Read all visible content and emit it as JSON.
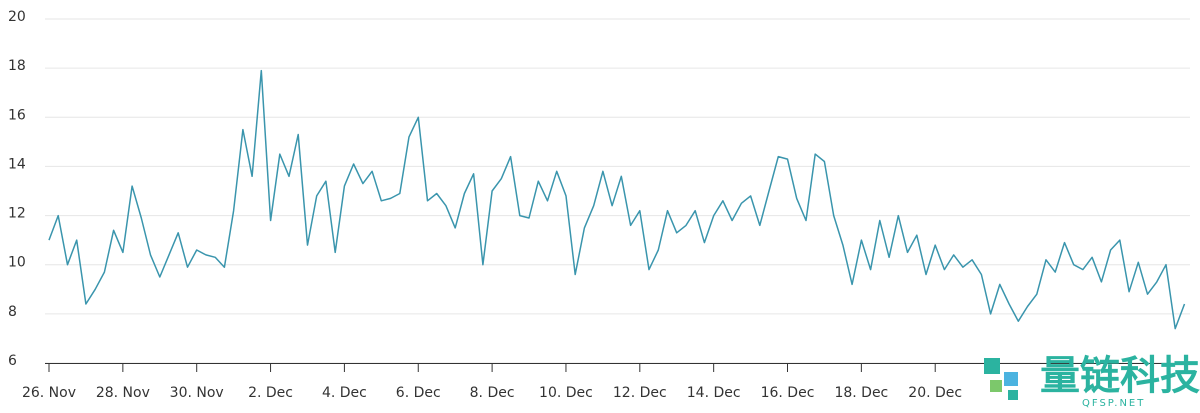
{
  "chart_data": {
    "type": "line",
    "x": [
      0,
      0.25,
      0.5,
      0.75,
      1,
      1.25,
      1.5,
      1.75,
      2,
      2.25,
      2.5,
      2.75,
      3,
      3.25,
      3.5,
      3.75,
      4,
      4.25,
      4.5,
      4.75,
      5,
      5.25,
      5.5,
      5.75,
      6,
      6.25,
      6.5,
      6.75,
      7,
      7.25,
      7.5,
      7.75,
      8,
      8.25,
      8.5,
      8.75,
      9,
      9.25,
      9.5,
      9.75,
      10,
      10.25,
      10.5,
      10.75,
      11,
      11.25,
      11.5,
      11.75,
      12,
      12.25,
      12.5,
      12.75,
      13,
      13.25,
      13.5,
      13.75,
      14,
      14.25,
      14.5,
      14.75,
      15,
      15.25,
      15.5,
      15.75,
      16,
      16.25,
      16.5,
      16.75,
      17,
      17.25,
      17.5,
      17.75,
      18,
      18.25,
      18.5,
      18.75,
      19,
      19.25,
      19.5,
      19.75,
      20,
      20.25,
      20.5,
      20.75,
      21,
      21.25,
      21.5,
      21.75,
      22,
      22.25,
      22.5,
      22.75,
      23,
      23.25,
      23.5,
      23.75,
      24,
      24.25,
      24.5,
      24.75,
      25,
      25.25,
      25.5,
      25.75,
      26,
      26.25,
      26.5,
      26.75,
      27,
      27.25,
      27.5,
      27.75,
      28,
      28.25,
      28.5,
      28.75,
      29,
      29.25,
      29.5,
      29.75,
      30,
      30.25,
      30.5,
      30.75
    ],
    "series": [
      {
        "name": "value",
        "color": "#3a95ad",
        "values": [
          11,
          12,
          10,
          11,
          8.4,
          9.0,
          9.7,
          11.4,
          10.5,
          13.2,
          11.9,
          10.4,
          9.5,
          10.4,
          11.3,
          9.9,
          10.6,
          10.4,
          10.3,
          9.9,
          12.2,
          15.5,
          13.6,
          17.9,
          11.8,
          14.5,
          13.6,
          15.3,
          10.8,
          12.8,
          13.4,
          10.5,
          13.2,
          14.1,
          13.3,
          13.8,
          12.6,
          12.7,
          12.9,
          15.2,
          16.0,
          12.6,
          12.9,
          12.4,
          11.5,
          12.9,
          13.7,
          10.0,
          13.0,
          13.5,
          14.4,
          12.0,
          11.9,
          13.4,
          12.6,
          13.8,
          12.8,
          9.6,
          11.5,
          12.4,
          13.8,
          12.4,
          13.6,
          11.6,
          12.2,
          9.8,
          10.6,
          12.2,
          11.3,
          11.6,
          12.2,
          10.9,
          12.0,
          12.6,
          11.8,
          12.5,
          12.8,
          11.6,
          13.0,
          14.4,
          14.3,
          12.7,
          11.8,
          14.5,
          14.2,
          12.0,
          10.8,
          9.2,
          11.0,
          9.8,
          11.8,
          10.3,
          12.0,
          10.5,
          11.2,
          9.6,
          10.8,
          9.8,
          10.4,
          9.9,
          10.2,
          9.6,
          8.0,
          9.2,
          8.4,
          7.7,
          8.3,
          8.8,
          10.2,
          9.7,
          10.9,
          10.0,
          9.8,
          10.3,
          9.3,
          10.6,
          11.0,
          8.9,
          10.1,
          8.8,
          9.3,
          10.0,
          7.4,
          8.4
        ]
      }
    ],
    "xlim": [
      0,
      30.9
    ],
    "xticks": [
      {
        "value": 0,
        "label": "26. Nov"
      },
      {
        "value": 2,
        "label": "28. Nov"
      },
      {
        "value": 4,
        "label": "30. Nov"
      },
      {
        "value": 6,
        "label": "2. Dec"
      },
      {
        "value": 8,
        "label": "4. Dec"
      },
      {
        "value": 10,
        "label": "6. Dec"
      },
      {
        "value": 12,
        "label": "8. Dec"
      },
      {
        "value": 14,
        "label": "10. Dec"
      },
      {
        "value": 16,
        "label": "12. Dec"
      },
      {
        "value": 18,
        "label": "14. Dec"
      },
      {
        "value": 20,
        "label": "16. Dec"
      },
      {
        "value": 22,
        "label": "18. Dec"
      },
      {
        "value": 24,
        "label": "20. Dec"
      }
    ],
    "ylim": [
      6,
      20
    ],
    "yticks": [
      6,
      8,
      10,
      12,
      14,
      16,
      18,
      20
    ],
    "grid": true,
    "watermark": {
      "text": "量链科技",
      "subtext": "QFSP.NET"
    }
  }
}
